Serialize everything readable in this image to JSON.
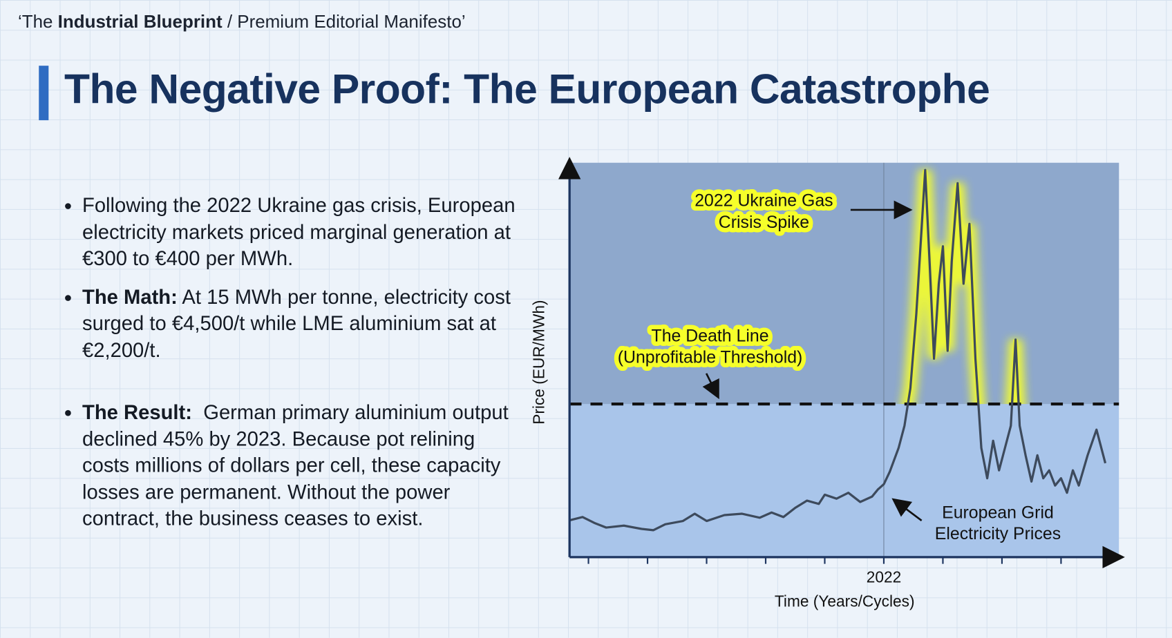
{
  "header": {
    "prefix": "‘The ",
    "bold": "Industrial Blueprint",
    "suffix": " / Premium Editorial Manifesto’"
  },
  "title": "The Negative Proof: The European Catastrophe",
  "bullets": [
    {
      "text": "Following the 2022 Ukraine gas crisis, European electricity markets priced marginal generation at €300 to €400 per MWh."
    },
    {
      "lead": "The Math:",
      "text": " At 15 MWh per tonne, electricity cost surged to €4,500/t while LME aluminium sat at €2,200/t."
    },
    {
      "lead": "The Result:",
      "text": "  German primary aluminium output declined 45% by 2023. Because pot relining costs millions of dollars per cell, these capacity losses are permanent. Without the power contract, the business ceases to exist."
    }
  ],
  "chart_data": {
    "type": "line",
    "x_label": "Time (Years/Cycles)",
    "y_label": "Price (EUR/MWh)",
    "xlim": [
      2016.68,
      2025.98
    ],
    "ylim": [
      0,
      600
    ],
    "xticks": [
      2022
    ],
    "x_minor_ticks": [
      2017,
      2018,
      2019,
      2020,
      2021,
      2023,
      2024,
      2025
    ],
    "color": "#3d4a5c",
    "threshold": 233,
    "x": [
      2016.68,
      2016.9,
      2017.1,
      2017.3,
      2017.6,
      2017.9,
      2018.1,
      2018.3,
      2018.6,
      2018.8,
      2019.0,
      2019.3,
      2019.6,
      2019.9,
      2020.1,
      2020.3,
      2020.5,
      2020.7,
      2020.9,
      2021.0,
      2021.2,
      2021.4,
      2021.6,
      2021.8,
      2021.9,
      2022.0,
      2022.1,
      2022.25,
      2022.35,
      2022.45,
      2022.55,
      2022.62,
      2022.7,
      2022.78,
      2022.85,
      2022.93,
      2023.0,
      2023.08,
      2023.15,
      2023.25,
      2023.35,
      2023.45,
      2023.55,
      2023.65,
      2023.75,
      2023.85,
      2023.95,
      2024.05,
      2024.15,
      2024.23,
      2024.3,
      2024.4,
      2024.5,
      2024.6,
      2024.7,
      2024.8,
      2024.9,
      2025.0,
      2025.1,
      2025.2,
      2025.3,
      2025.45,
      2025.6,
      2025.75
    ],
    "values": [
      56,
      61,
      52,
      45,
      48,
      43,
      41,
      50,
      55,
      66,
      55,
      64,
      66,
      60,
      68,
      61,
      75,
      86,
      81,
      95,
      89,
      98,
      84,
      92,
      103,
      111,
      130,
      166,
      200,
      257,
      370,
      473,
      589,
      439,
      302,
      416,
      473,
      314,
      450,
      569,
      416,
      507,
      302,
      166,
      120,
      177,
      132,
      166,
      200,
      331,
      200,
      155,
      115,
      155,
      120,
      132,
      109,
      120,
      98,
      132,
      109,
      155,
      194,
      143
    ],
    "annotations": [
      {
        "lines": [
          "2022 Ukraine Gas",
          "Crisis Spike"
        ]
      },
      {
        "lines": [
          "The Death Line",
          "(Unprofitable Threshold)"
        ]
      },
      {
        "lines": [
          "European Grid",
          "Electricity Prices"
        ]
      }
    ]
  }
}
